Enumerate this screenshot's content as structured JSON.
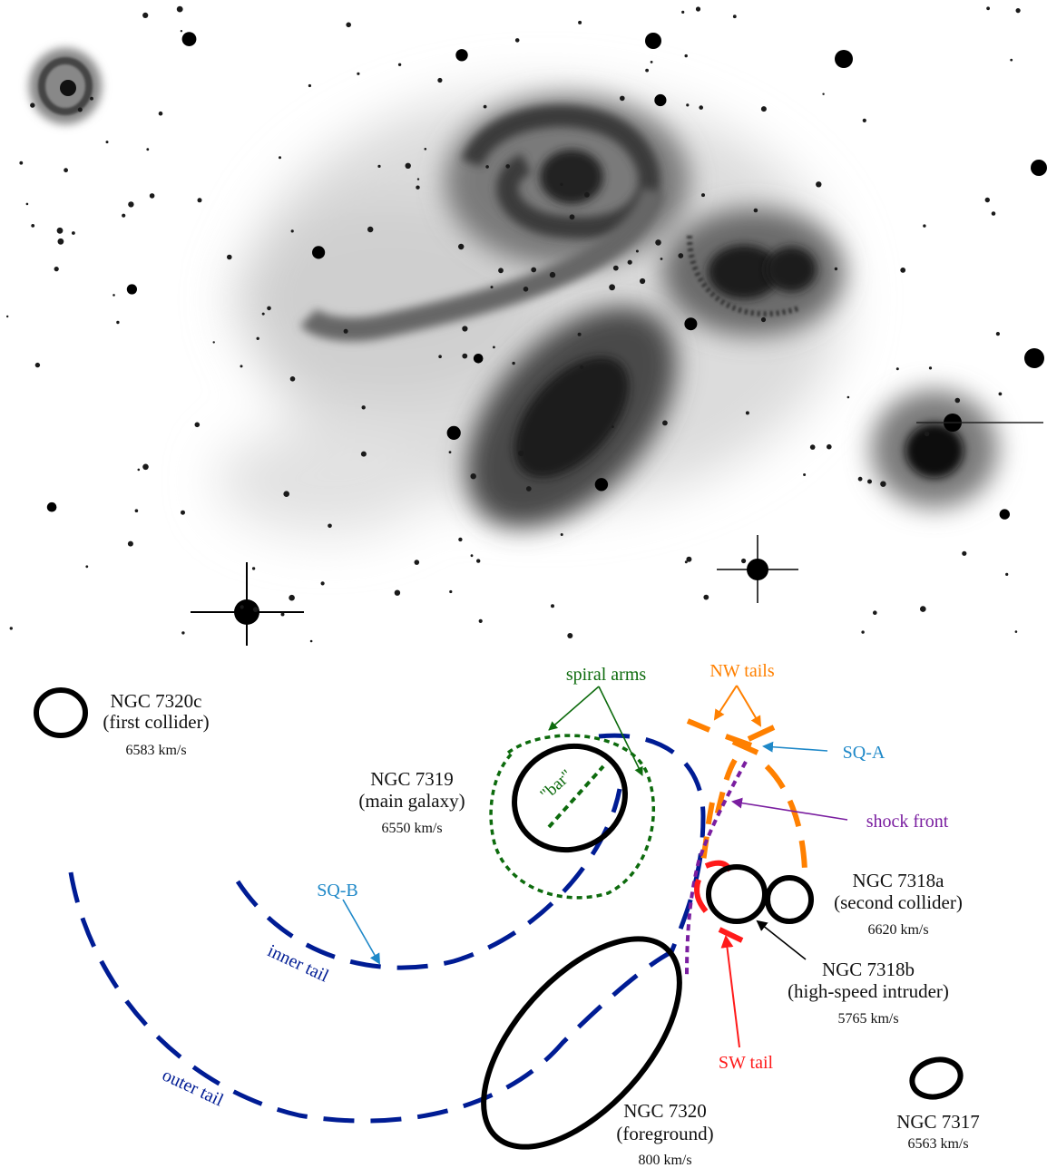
{
  "colors": {
    "black": "#000000",
    "dark_blue": "#001c94",
    "green": "#0d6b0d",
    "orange": "#ff8000",
    "light_blue": "#1e88c8",
    "purple": "#7a1ea0",
    "red": "#ff1a1a"
  },
  "galaxies": {
    "ngc7320c": {
      "name": "NGC 7320c",
      "role": "(first collider)",
      "velocity": "6583 km/s"
    },
    "ngc7319": {
      "name": "NGC 7319",
      "role": "(main galaxy)",
      "velocity": "6550 km/s"
    },
    "ngc7318a": {
      "name": "NGC 7318a",
      "role": "(second collider)",
      "velocity": "6620 km/s"
    },
    "ngc7318b": {
      "name": "NGC 7318b",
      "role": "(high-speed intruder)",
      "velocity": "5765 km/s"
    },
    "ngc7320": {
      "name": "NGC 7320",
      "role": "(foreground)",
      "velocity": "800 km/s"
    },
    "ngc7317": {
      "name": "NGC 7317",
      "velocity": "6563 km/s"
    }
  },
  "labels": {
    "spiral_arms": "spiral arms",
    "bar": "\"bar\"",
    "nw_tails": "NW tails",
    "sq_a": "SQ-A",
    "shock_front": "shock front",
    "sq_b": "SQ-B",
    "inner_tail": "inner tail",
    "outer_tail": "outer tail",
    "sw_tail": "SW tail"
  }
}
